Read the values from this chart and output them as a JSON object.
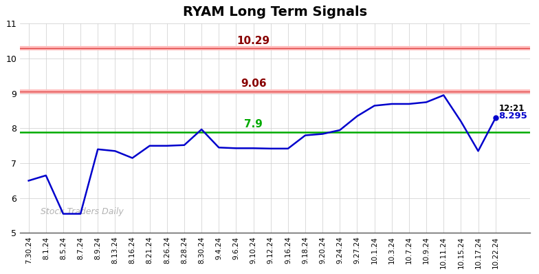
{
  "title": "RYAM Long Term Signals",
  "x_labels": [
    "7.30.24",
    "8.1.24",
    "8.5.24",
    "8.7.24",
    "8.9.24",
    "8.13.24",
    "8.16.24",
    "8.21.24",
    "8.26.24",
    "8.28.24",
    "8.30.24",
    "9.4.24",
    "9.6.24",
    "9.10.24",
    "9.12.24",
    "9.16.24",
    "9.18.24",
    "9.20.24",
    "9.24.24",
    "9.27.24",
    "10.1.24",
    "10.3.24",
    "10.7.24",
    "10.9.24",
    "10.11.24",
    "10.15.24",
    "10.17.24",
    "10.22.24"
  ],
  "y_values": [
    6.5,
    6.65,
    5.55,
    5.55,
    7.4,
    7.35,
    7.15,
    7.5,
    7.5,
    7.52,
    7.97,
    7.45,
    7.43,
    7.43,
    7.42,
    7.42,
    7.8,
    7.84,
    7.95,
    8.35,
    8.65,
    8.7,
    8.7,
    8.75,
    8.95,
    8.2,
    7.35,
    8.295
  ],
  "line_color": "#0000cc",
  "hline_green": 7.9,
  "hline_red1": 9.06,
  "hline_red2": 10.29,
  "green_color": "#00aa00",
  "red_color": "#880000",
  "pink_color": "#ffbbbb",
  "last_label": "12:21",
  "last_value": "8.295",
  "ylim_min": 5,
  "ylim_max": 11,
  "watermark": "Stock Traders Daily",
  "background_color": "#ffffff",
  "grid_color": "#cccccc",
  "title_fontsize": 14,
  "label_fontsize": 11
}
